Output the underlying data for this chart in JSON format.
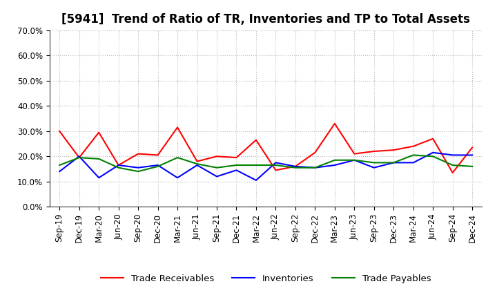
{
  "title": "[5941]  Trend of Ratio of TR, Inventories and TP to Total Assets",
  "labels": [
    "Sep-19",
    "Dec-19",
    "Mar-20",
    "Jun-20",
    "Sep-20",
    "Dec-20",
    "Mar-21",
    "Jun-21",
    "Sep-21",
    "Dec-21",
    "Mar-22",
    "Jun-22",
    "Sep-22",
    "Dec-22",
    "Mar-23",
    "Jun-23",
    "Sep-23",
    "Dec-23",
    "Mar-24",
    "Jun-24",
    "Sep-24",
    "Dec-24"
  ],
  "trade_receivables": [
    0.3,
    0.195,
    0.295,
    0.165,
    0.21,
    0.205,
    0.315,
    0.18,
    0.2,
    0.195,
    0.265,
    0.145,
    0.16,
    0.215,
    0.33,
    0.21,
    0.22,
    0.225,
    0.24,
    0.27,
    0.135,
    0.235
  ],
  "inventories": [
    0.14,
    0.2,
    0.115,
    0.165,
    0.155,
    0.165,
    0.115,
    0.165,
    0.12,
    0.145,
    0.105,
    0.175,
    0.16,
    0.155,
    0.165,
    0.185,
    0.155,
    0.175,
    0.175,
    0.215,
    0.205,
    0.205
  ],
  "trade_payables": [
    0.165,
    0.195,
    0.19,
    0.155,
    0.14,
    0.16,
    0.195,
    0.17,
    0.155,
    0.165,
    0.165,
    0.165,
    0.155,
    0.155,
    0.185,
    0.185,
    0.175,
    0.175,
    0.205,
    0.2,
    0.165,
    0.16
  ],
  "ylim": [
    0.0,
    0.7
  ],
  "yticks": [
    0.0,
    0.1,
    0.2,
    0.3,
    0.4,
    0.5,
    0.6,
    0.7
  ],
  "line_colors": {
    "trade_receivables": "#ff0000",
    "inventories": "#0000ff",
    "trade_payables": "#008000"
  },
  "legend_labels": [
    "Trade Receivables",
    "Inventories",
    "Trade Payables"
  ],
  "background_color": "#ffffff",
  "grid_color": "#aaaaaa",
  "title_fontsize": 12,
  "tick_fontsize": 8.5,
  "legend_fontsize": 9.5
}
